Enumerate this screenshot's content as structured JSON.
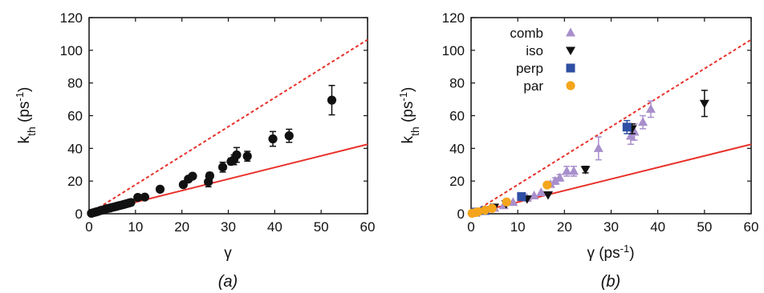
{
  "colors": {
    "black": "#111111",
    "red": "#e8312a",
    "comb": "#a88fcc",
    "iso": "#111111",
    "perp": "#2e4fa3",
    "par": "#f4a51c"
  },
  "chart_data": [
    {
      "type": "scatter",
      "panel_label": "(a)",
      "xlabel": "γ",
      "ylabel_main": "k",
      "ylabel_sub": "th",
      "ylabel_unit_pre": " (ps",
      "ylabel_unit_sup": "-1",
      "ylabel_unit_post": ")",
      "xlim": [
        0,
        60
      ],
      "ylim": [
        0,
        120
      ],
      "xticks": [
        "0",
        "10",
        "20",
        "30",
        "40",
        "50",
        "60"
      ],
      "yticks": [
        "0",
        "20",
        "40",
        "60",
        "80",
        "100",
        "120"
      ],
      "grid": false,
      "lines": [
        {
          "style": "solid",
          "color": "red",
          "x": [
            0,
            60
          ],
          "y": [
            0,
            42.5
          ]
        },
        {
          "style": "dashed",
          "color": "red",
          "x": [
            0,
            60
          ],
          "y": [
            0,
            106.5
          ]
        }
      ],
      "series": [
        {
          "marker": "circle",
          "color": "black",
          "points": [
            [
              0.5,
              0.3,
              0
            ],
            [
              1,
              0.7,
              0
            ],
            [
              1.5,
              1.1,
              0
            ],
            [
              2,
              1.5,
              0
            ],
            [
              2.5,
              2,
              0
            ],
            [
              3,
              2.3,
              0
            ],
            [
              3.5,
              2.8,
              0
            ],
            [
              4,
              3.2,
              0
            ],
            [
              4.5,
              3.5,
              0
            ],
            [
              5,
              3.9,
              0
            ],
            [
              5.5,
              4.2,
              0
            ],
            [
              6,
              4.6,
              0
            ],
            [
              6.5,
              5,
              0
            ],
            [
              7,
              5.3,
              0
            ],
            [
              7.5,
              5.7,
              0
            ],
            [
              8,
              6.1,
              0
            ],
            [
              8.5,
              6.5,
              0
            ],
            [
              9,
              6.9,
              0
            ],
            [
              10.5,
              10,
              0
            ],
            [
              12,
              10.2,
              0
            ],
            [
              15.3,
              15,
              0
            ],
            [
              20.3,
              17.8,
              0
            ],
            [
              21.4,
              21.2,
              0
            ],
            [
              22.3,
              23,
              0
            ],
            [
              25.7,
              19.5,
              3
            ],
            [
              26,
              23.2,
              2
            ],
            [
              28.8,
              28.5,
              3
            ],
            [
              30.6,
              32,
              2
            ],
            [
              31.2,
              33,
              3
            ],
            [
              31.8,
              36,
              4.5
            ],
            [
              34.1,
              35.2,
              3
            ],
            [
              39.6,
              45.8,
              4.5
            ],
            [
              43.1,
              47.7,
              4
            ],
            [
              52.3,
              69.5,
              9
            ]
          ]
        }
      ]
    },
    {
      "type": "scatter",
      "panel_label": "(b)",
      "xlabel_pre": "γ (ps",
      "xlabel_sup": "-1",
      "xlabel_post": ")",
      "ylabel_main": "k",
      "ylabel_sub": "th",
      "ylabel_unit_pre": " (ps",
      "ylabel_unit_sup": "-1",
      "ylabel_unit_post": ")",
      "xlim": [
        0,
        60
      ],
      "ylim": [
        0,
        120
      ],
      "xticks": [
        "0",
        "10",
        "20",
        "30",
        "40",
        "50",
        "60"
      ],
      "yticks": [
        "0",
        "20",
        "40",
        "60",
        "80",
        "100",
        "120"
      ],
      "grid": false,
      "legend_position": "top-left",
      "lines": [
        {
          "style": "solid",
          "color": "red",
          "x": [
            0,
            60
          ],
          "y": [
            0,
            42.5
          ]
        },
        {
          "style": "dashed",
          "color": "red",
          "x": [
            0,
            60
          ],
          "y": [
            0,
            106.5
          ]
        }
      ],
      "series": [
        {
          "name": "comb",
          "marker": "triangle",
          "color": "comb",
          "points": [
            [
              1,
              1,
              0
            ],
            [
              2,
              1.5,
              0
            ],
            [
              3,
              2.3,
              0
            ],
            [
              5,
              3.5,
              0
            ],
            [
              7,
              5,
              0
            ],
            [
              9,
              7,
              0
            ],
            [
              12,
              9.5,
              0
            ],
            [
              13.5,
              11,
              0
            ],
            [
              15,
              13,
              0
            ],
            [
              17,
              18,
              0
            ],
            [
              18,
              20,
              2
            ],
            [
              19,
              22,
              2
            ],
            [
              20.5,
              26,
              3
            ],
            [
              22,
              26,
              3
            ],
            [
              27.3,
              40,
              7
            ],
            [
              34.2,
              47.5,
              5
            ],
            [
              35,
              50,
              5
            ],
            [
              36.8,
              56,
              4
            ],
            [
              38.5,
              64,
              5
            ]
          ]
        },
        {
          "name": "iso",
          "marker": "triangle-down",
          "color": "iso",
          "points": [
            [
              1,
              0.8,
              0
            ],
            [
              5,
              4,
              0
            ],
            [
              7.5,
              6,
              0
            ],
            [
              12,
              9,
              0
            ],
            [
              16.5,
              11.5,
              0
            ],
            [
              24.5,
              27,
              2
            ],
            [
              34.5,
              52,
              3
            ],
            [
              50,
              67.5,
              8
            ]
          ]
        },
        {
          "name": "perp",
          "marker": "square",
          "color": "perp",
          "points": [
            [
              1,
              1,
              0
            ],
            [
              3,
              2,
              0
            ],
            [
              10.8,
              10.5,
              0
            ],
            [
              33.4,
              53,
              4
            ]
          ]
        },
        {
          "name": "par",
          "marker": "circle",
          "color": "par",
          "points": [
            [
              0.2,
              0.3,
              0
            ],
            [
              1,
              0.8,
              0
            ],
            [
              1.5,
              1.2,
              0
            ],
            [
              3,
              2.2,
              0
            ],
            [
              4.5,
              3.3,
              0
            ],
            [
              7.6,
              7.2,
              0
            ],
            [
              16.3,
              17.6,
              0
            ]
          ]
        }
      ]
    }
  ]
}
